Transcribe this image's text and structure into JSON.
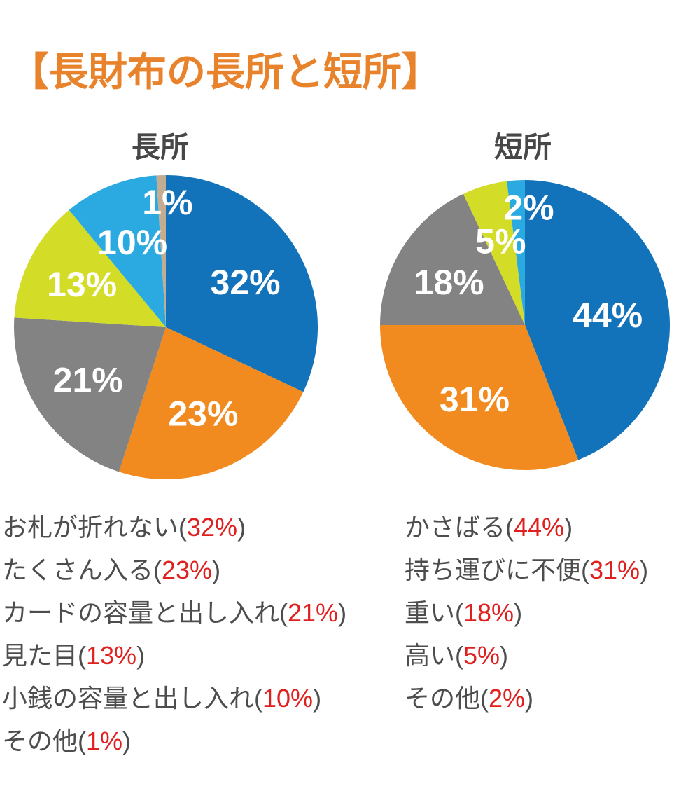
{
  "page_title": "【長財布の長所と短所】",
  "accent_colors": {
    "title_orange": "#E8832C",
    "legend_text_gray": "#4D4D4D",
    "legend_percent_red": "#E01F1F",
    "chart_title_gray": "#474747",
    "pie_label_white": "#FFFFFF"
  },
  "chart_data": [
    {
      "type": "pie",
      "title": "長所",
      "categories": [
        "お札が折れない",
        "たくさん入る",
        "カードの容量と出し入れ",
        "見た目",
        "小銭の容量と出し入れ",
        "その他"
      ],
      "values": [
        32,
        23,
        21,
        13,
        10,
        1
      ],
      "slice_labels": [
        "32%",
        "23%",
        "21%",
        "13%",
        "10%",
        "1%"
      ],
      "colors": [
        "#1272BA",
        "#F28B1F",
        "#838383",
        "#D3DC26",
        "#2BAAE1",
        "#C3AC91"
      ],
      "legend": [
        {
          "label": "お札が折れない",
          "pct": "32%"
        },
        {
          "label": "たくさん入る",
          "pct": "23%"
        },
        {
          "label": "カードの容量と出し入れ",
          "pct": "21%"
        },
        {
          "label": "見た目",
          "pct": "13%"
        },
        {
          "label": "小銭の容量と出し入れ",
          "pct": "10%"
        },
        {
          "label": "その他",
          "pct": "1%"
        }
      ],
      "start_angle_deg": 0,
      "direction": "clockwise",
      "legend_position": "below"
    },
    {
      "type": "pie",
      "title": "短所",
      "categories": [
        "かさばる",
        "持ち運びに不便",
        "重い",
        "高い",
        "その他"
      ],
      "values": [
        44,
        31,
        18,
        5,
        2
      ],
      "slice_labels": [
        "44%",
        "31%",
        "18%",
        "5%",
        "2%"
      ],
      "colors": [
        "#1272BA",
        "#F28B1F",
        "#838383",
        "#D3DC26",
        "#2BAAE1"
      ],
      "legend": [
        {
          "label": "かさばる",
          "pct": "44%"
        },
        {
          "label": "持ち運びに不便",
          "pct": "31%"
        },
        {
          "label": "重い",
          "pct": "18%"
        },
        {
          "label": "高い",
          "pct": "5%"
        },
        {
          "label": "その他",
          "pct": "2%"
        }
      ],
      "start_angle_deg": 0,
      "direction": "clockwise",
      "legend_position": "below"
    }
  ]
}
